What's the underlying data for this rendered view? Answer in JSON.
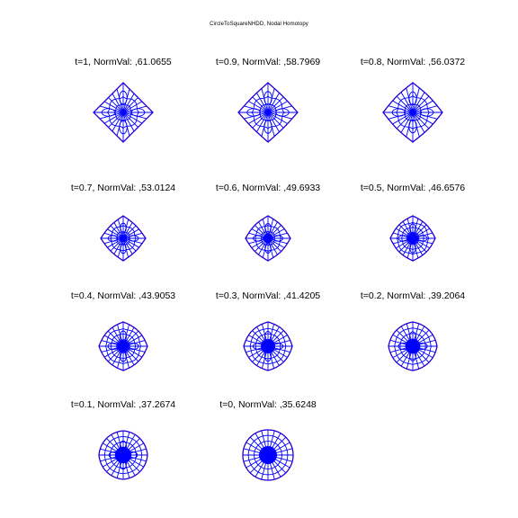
{
  "figure_title": "CircleToSquareNHDD, Nodal Homotopy",
  "colors": {
    "lines": "#0000ff",
    "boundary": "#ff3b1f",
    "background": "#ffffff"
  },
  "panels": [
    {
      "title": "t=1, NormVal: ,61.0655",
      "t": 1.0
    },
    {
      "title": "t=0.9, NormVal: ,58.7969",
      "t": 0.9
    },
    {
      "title": "t=0.8, NormVal: ,56.0372",
      "t": 0.8
    },
    {
      "title": "t=0.7, NormVal: ,53.0124",
      "t": 0.7
    },
    {
      "title": "t=0.6, NormVal: ,49.6933",
      "t": 0.6
    },
    {
      "title": "t=0.5, NormVal: ,46.6576",
      "t": 0.5
    },
    {
      "title": "t=0.4, NormVal: ,43.9053",
      "t": 0.4
    },
    {
      "title": "t=0.3, NormVal: ,41.4205",
      "t": 0.3
    },
    {
      "title": "t=0.2, NormVal: ,39.2064",
      "t": 0.2
    },
    {
      "title": "t=0.1, NormVal: ,37.2674",
      "t": 0.1
    },
    {
      "title": "t=0, NormVal: ,35.6248",
      "t": 0.0
    }
  ]
}
